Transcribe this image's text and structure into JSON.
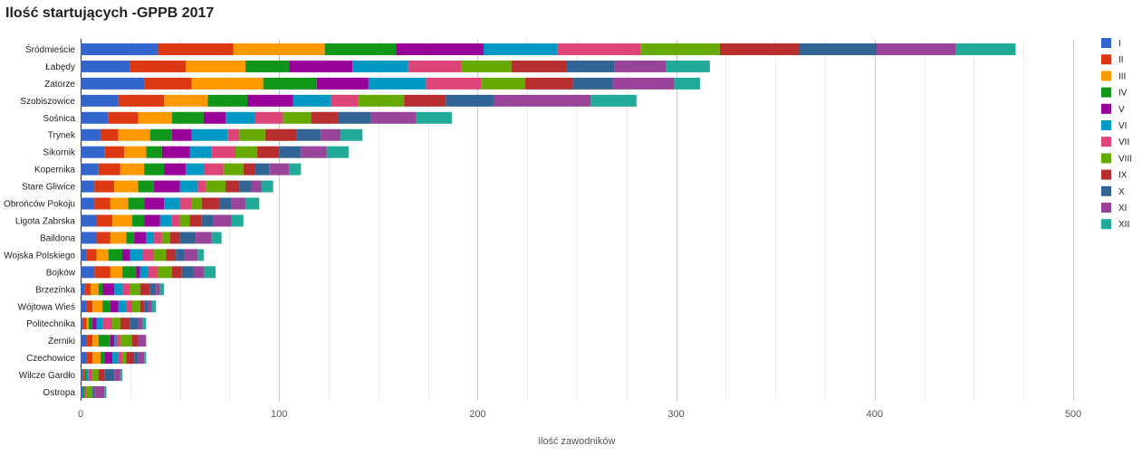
{
  "chart_data": {
    "type": "bar",
    "orientation": "horizontal",
    "stacked": true,
    "title": "Ilość startujących -GPPB 2017",
    "xlabel": "ilość zawodników",
    "ylabel": "",
    "xlim": [
      0,
      500
    ],
    "xticks": [
      0,
      100,
      200,
      300,
      400,
      500
    ],
    "grid": true,
    "legend_position": "right",
    "categories": [
      "Śródmieście",
      "Łabędy",
      "Zatorze",
      "Szobiszowice",
      "Sośnica",
      "Trynek",
      "Sikornik",
      "Kopernika",
      "Stare Gliwice",
      "Obrońców Pokoju",
      "Ligota Zabrska",
      "Baildona",
      "Wojska Polskiego",
      "Bojków",
      "Brzezinka",
      "Wójtowa Wieś",
      "Politechnika",
      "Żerniki",
      "Czechowice",
      "Wilcze Gardło",
      "Ostropa"
    ],
    "series": [
      {
        "name": "I",
        "color": "#3366cc",
        "values": [
          39,
          25,
          32,
          19,
          14,
          10,
          12,
          9,
          7,
          7,
          8,
          8,
          3,
          7,
          2,
          3,
          1,
          3,
          3,
          1,
          1
        ]
      },
      {
        "name": "II",
        "color": "#dc3912",
        "values": [
          38,
          28,
          24,
          23,
          15,
          9,
          10,
          11,
          10,
          8,
          8,
          7,
          5,
          8,
          3,
          3,
          2,
          3,
          3,
          1,
          0
        ]
      },
      {
        "name": "III",
        "color": "#ff9900",
        "values": [
          46,
          30,
          36,
          22,
          17,
          16,
          11,
          12,
          12,
          9,
          10,
          8,
          6,
          6,
          4,
          5,
          1,
          3,
          4,
          0,
          0
        ]
      },
      {
        "name": "IV",
        "color": "#109618",
        "values": [
          36,
          22,
          27,
          20,
          16,
          11,
          8,
          10,
          8,
          8,
          6,
          4,
          7,
          7,
          2,
          4,
          2,
          6,
          2,
          1,
          1
        ]
      },
      {
        "name": "V",
        "color": "#990099",
        "values": [
          44,
          32,
          26,
          23,
          11,
          10,
          14,
          11,
          13,
          10,
          8,
          6,
          4,
          2,
          6,
          4,
          2,
          2,
          4,
          0,
          0
        ]
      },
      {
        "name": "VI",
        "color": "#0099c6",
        "values": [
          37,
          28,
          29,
          19,
          15,
          18,
          11,
          9,
          9,
          8,
          6,
          4,
          6,
          4,
          4,
          4,
          3,
          1,
          3,
          1,
          0
        ]
      },
      {
        "name": "VII",
        "color": "#dd4477",
        "values": [
          42,
          27,
          28,
          14,
          14,
          6,
          12,
          10,
          4,
          6,
          4,
          4,
          6,
          5,
          4,
          3,
          5,
          2,
          2,
          2,
          1
        ]
      },
      {
        "name": "VIII",
        "color": "#66aa00",
        "values": [
          40,
          25,
          22,
          23,
          14,
          13,
          11,
          10,
          10,
          5,
          5,
          4,
          6,
          7,
          5,
          4,
          4,
          6,
          2,
          3,
          3
        ]
      },
      {
        "name": "IX",
        "color": "#b82e2e",
        "values": [
          40,
          28,
          24,
          21,
          14,
          16,
          11,
          6,
          7,
          9,
          6,
          5,
          5,
          5,
          5,
          2,
          5,
          3,
          4,
          3,
          0
        ]
      },
      {
        "name": "X",
        "color": "#316395",
        "values": [
          39,
          24,
          20,
          24,
          16,
          12,
          11,
          7,
          6,
          6,
          6,
          8,
          4,
          6,
          3,
          2,
          4,
          0,
          2,
          5,
          1
        ]
      },
      {
        "name": "XI",
        "color": "#994499",
        "values": [
          40,
          26,
          31,
          49,
          23,
          10,
          13,
          10,
          5,
          7,
          9,
          8,
          7,
          5,
          2,
          2,
          2,
          4,
          3,
          3,
          5
        ]
      },
      {
        "name": "XII",
        "color": "#22aa99",
        "values": [
          30,
          22,
          13,
          23,
          18,
          11,
          11,
          6,
          6,
          7,
          6,
          5,
          3,
          6,
          2,
          2,
          2,
          0,
          1,
          1,
          1
        ]
      }
    ]
  }
}
